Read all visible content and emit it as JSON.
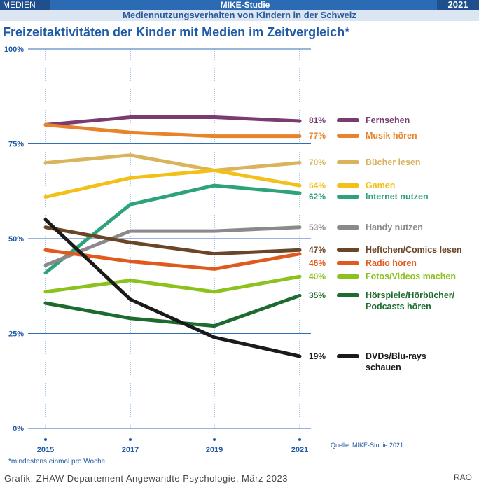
{
  "header": {
    "section": "MEDIEN",
    "study": "MIKE-Studie",
    "year": "2021",
    "subtitle": "Mediennutzungsverhalten von Kindern in der Schweiz"
  },
  "footnote": "*mindestens einmal pro Woche",
  "source": "Quelle: MIKE-Studie 2021",
  "footer": "Grafik: ZHAW Departement Angewandte Psychologie, März 2023",
  "signature": "RAO",
  "chart_data": {
    "type": "line",
    "title": "Freizeitaktivitäten der Kinder mit Medien im Zeitvergleich*",
    "x": [
      "2015",
      "2017",
      "2019",
      "2021"
    ],
    "ylim": [
      0,
      100
    ],
    "yticks": [
      {
        "value": 0,
        "label": "0%"
      },
      {
        "value": 25,
        "label": "25%"
      },
      {
        "value": 50,
        "label": "50%"
      },
      {
        "value": 75,
        "label": "75%"
      },
      {
        "value": 100,
        "label": "100%"
      }
    ],
    "series": [
      {
        "name": "Fernsehen",
        "values": [
          80,
          82,
          82,
          81
        ],
        "color": "#7a3b72",
        "end_label": "81%"
      },
      {
        "name": "Musik hören",
        "values": [
          80,
          78,
          77,
          77
        ],
        "color": "#e8832a",
        "end_label": "77%"
      },
      {
        "name": "Bücher lesen",
        "values": [
          70,
          72,
          68,
          70
        ],
        "color": "#d9b45c",
        "end_label": "70%"
      },
      {
        "name": "Gamen",
        "values": [
          61,
          66,
          68,
          64
        ],
        "color": "#f2c018",
        "end_label": "64%"
      },
      {
        "name": "Internet nutzen",
        "values": [
          41,
          59,
          64,
          62
        ],
        "color": "#2ea37a",
        "end_label": "62%"
      },
      {
        "name": "Handy nutzen",
        "values": [
          43,
          52,
          52,
          53
        ],
        "color": "#8a8a8a",
        "end_label": "53%"
      },
      {
        "name": "Heftchen/Comics lesen",
        "values": [
          53,
          49,
          46,
          47
        ],
        "color": "#6b4528",
        "end_label": "47%"
      },
      {
        "name": "Radio hören",
        "values": [
          47,
          44,
          42,
          46
        ],
        "color": "#e05a1e",
        "end_label": "46%"
      },
      {
        "name": "Fotos/Videos machen",
        "values": [
          36,
          39,
          36,
          40
        ],
        "color": "#8cc21e",
        "end_label": "40%"
      },
      {
        "name": "Hörspiele/Hörbücher/ Podcasts hören",
        "lines": [
          "Hörspiele/Hörbücher/",
          "Podcasts hören"
        ],
        "values": [
          33,
          29,
          27,
          35
        ],
        "color": "#1e6b30",
        "end_label": "35%"
      },
      {
        "name": "DVDs/Blu-rays schauen",
        "lines": [
          "DVDs/Blu-rays",
          "schauen"
        ],
        "values": [
          55,
          34,
          24,
          19
        ],
        "color": "#1a1a1a",
        "end_label": "19%"
      }
    ]
  }
}
